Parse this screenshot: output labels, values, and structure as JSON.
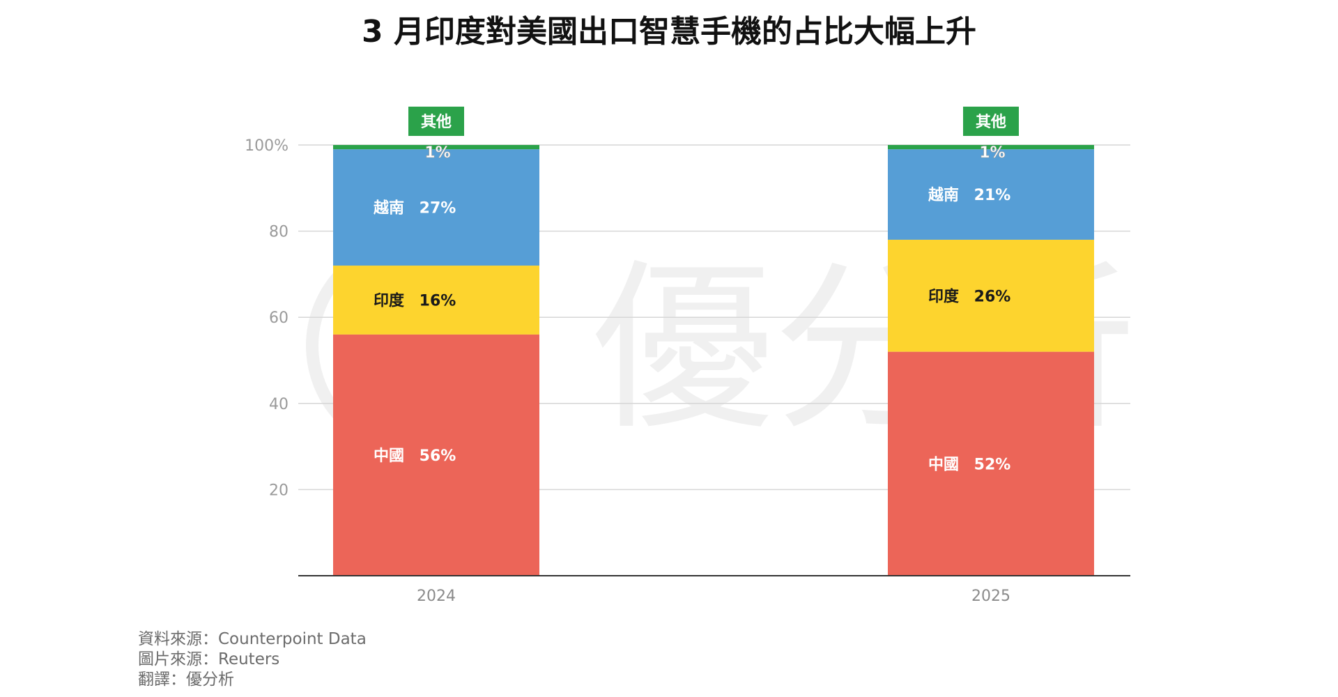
{
  "title": "3 月印度對美國出口智慧手機的占比大幅上升",
  "watermark": "優分析",
  "chart_data": {
    "type": "bar",
    "stacked": true,
    "categories": [
      "2024",
      "2025"
    ],
    "y_ticks": [
      "100%",
      "80",
      "60",
      "40",
      "20"
    ],
    "ylim": [
      0,
      100
    ],
    "grid": true,
    "series": [
      {
        "name": "中國",
        "values": [
          56,
          52
        ],
        "labels": [
          "56%",
          "52%"
        ],
        "color": "#EC6558",
        "text_color": "#ffffff"
      },
      {
        "name": "印度",
        "values": [
          16,
          26
        ],
        "labels": [
          "16%",
          "26%"
        ],
        "color": "#FDD42E",
        "text_color": "#1a1a1a"
      },
      {
        "name": "越南",
        "values": [
          27,
          21
        ],
        "labels": [
          "27%",
          "21%"
        ],
        "color": "#569ED6",
        "text_color": "#ffffff"
      },
      {
        "name": "其他",
        "values": [
          1,
          1
        ],
        "labels": [
          "1%",
          "1%"
        ],
        "color": "#2BA24A",
        "text_color": "#ffffff"
      }
    ]
  },
  "footer": {
    "source": "資料來源：Counterpoint Data",
    "image_source": "圖片來源：Reuters",
    "translation": "翻譯：優分析"
  }
}
